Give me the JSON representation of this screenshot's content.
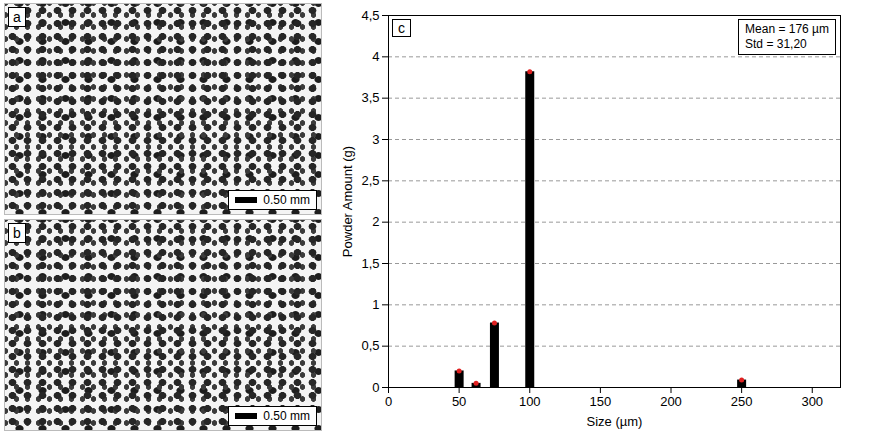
{
  "panels": [
    {
      "letter": "a",
      "scale_bar": "0.50 mm"
    },
    {
      "letter": "b",
      "scale_bar": "0.50 mm"
    }
  ],
  "chart_data": {
    "type": "bar",
    "panel_label": "c",
    "annotations": [
      "Mean = 176 µm",
      "Std = 31,20"
    ],
    "x_label": "Size (µm)",
    "y_label": "Powder Amount (g)",
    "x": [
      50,
      62,
      75,
      100,
      250
    ],
    "values": [
      0.2,
      0.05,
      0.78,
      3.82,
      0.09
    ],
    "color": "#000000",
    "marker": "circle",
    "xlim": [
      0,
      320
    ],
    "xticks": [
      0,
      50,
      100,
      150,
      200,
      250,
      300
    ],
    "ylim": [
      0,
      4.5
    ],
    "yticks": [
      0,
      {
        "value": 0.5,
        "label": "0,5"
      },
      1,
      {
        "value": 1.5,
        "label": "1,5"
      },
      2,
      {
        "value": 2.5,
        "label": "2,5"
      },
      3,
      {
        "value": 3.5,
        "label": "3,5"
      },
      4,
      {
        "value": 4.5,
        "label": "4,5"
      }
    ],
    "grid": true
  }
}
